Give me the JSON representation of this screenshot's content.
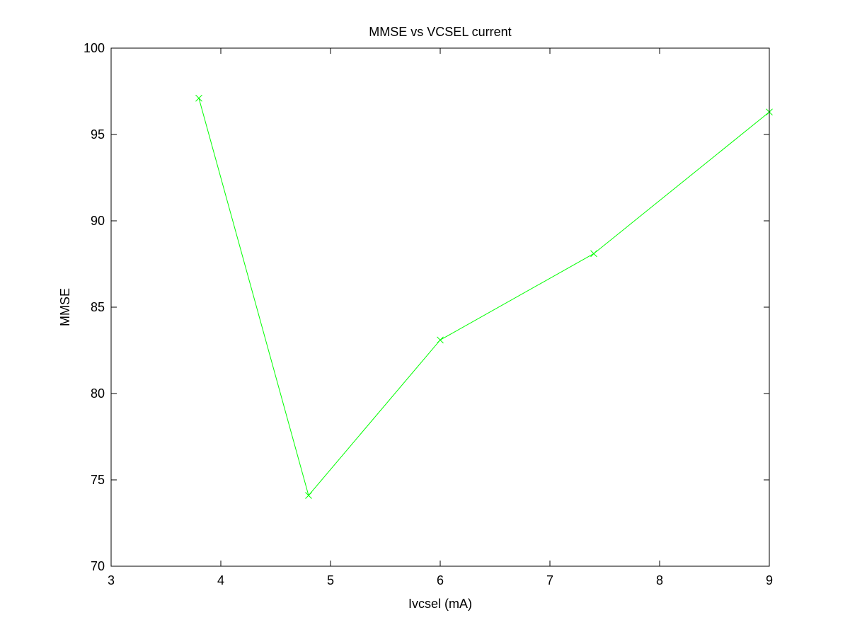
{
  "chart_data": {
    "type": "line",
    "title": "MMSE vs VCSEL current",
    "xlabel": "Ivcsel (mA)",
    "ylabel": "MMSE",
    "xlim": [
      3,
      9
    ],
    "ylim": [
      70,
      100
    ],
    "xticks": [
      3,
      4,
      5,
      6,
      7,
      8,
      9
    ],
    "yticks": [
      70,
      75,
      80,
      85,
      90,
      95,
      100
    ],
    "grid": false,
    "series": [
      {
        "x": [
          3.8,
          4.8,
          6.0,
          7.4,
          9.0
        ],
        "y": [
          97.1,
          74.1,
          83.1,
          88.1,
          96.3
        ],
        "color": "#00ff00",
        "marker": "x"
      }
    ]
  }
}
